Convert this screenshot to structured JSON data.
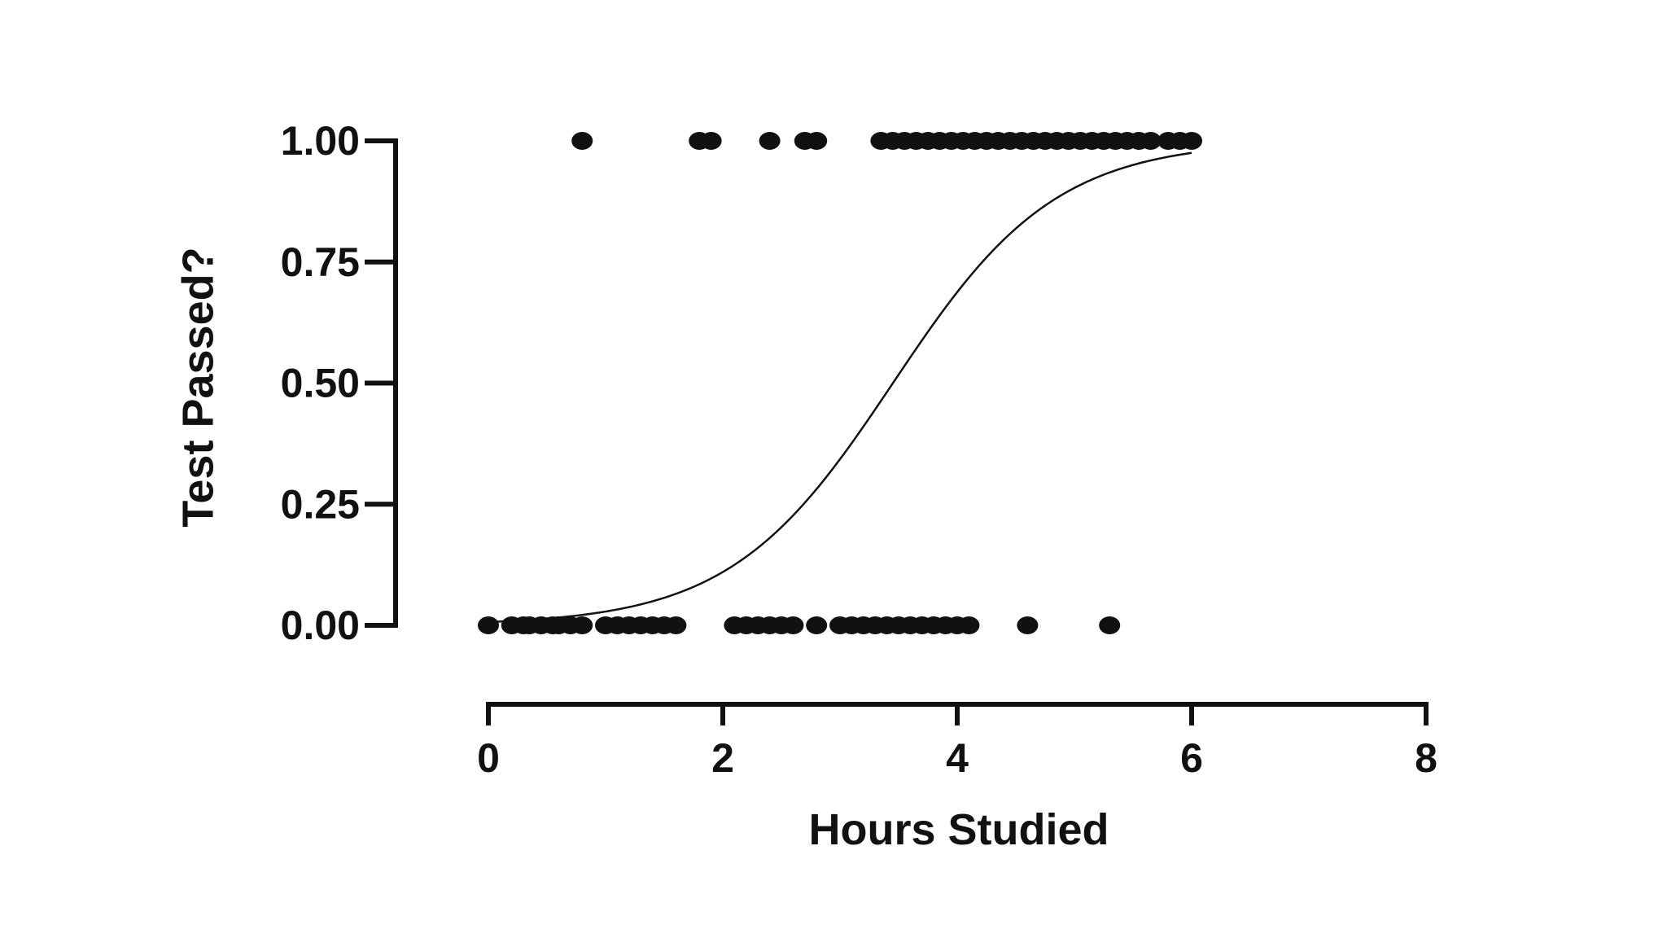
{
  "chart_data": {
    "type": "scatter",
    "xlabel": "Hours Studied",
    "ylabel": "Test Passed?",
    "xlim": [
      0,
      8
    ],
    "ylim": [
      0,
      1
    ],
    "x_ticks": [
      0,
      2,
      4,
      6,
      8
    ],
    "x_tick_labels": [
      "0",
      "2",
      "4",
      "6",
      "8"
    ],
    "y_ticks": [
      0,
      0.25,
      0.5,
      0.75,
      1
    ],
    "y_tick_labels": [
      "0.00",
      "0.25",
      "0.50",
      "0.75",
      "1.00"
    ],
    "grid": false,
    "colors": {
      "ink": "#111111",
      "background": "#ffffff"
    },
    "series": [
      {
        "kind": "points",
        "x": [
          0.0,
          0.2,
          0.3,
          0.35,
          0.45,
          0.55,
          0.6,
          0.7,
          0.8,
          1.0,
          1.1,
          1.2,
          1.3,
          1.4,
          1.5,
          1.6,
          2.1,
          2.2,
          2.3,
          2.4,
          2.5,
          2.6,
          2.8,
          3.0,
          3.1,
          3.2,
          3.3,
          3.4,
          3.5,
          3.6,
          3.7,
          3.8,
          3.9,
          4.0,
          4.1,
          4.6,
          5.3
        ],
        "y": [
          0,
          0,
          0,
          0,
          0,
          0,
          0,
          0,
          0,
          0,
          0,
          0,
          0,
          0,
          0,
          0,
          0,
          0,
          0,
          0,
          0,
          0,
          0,
          0,
          0,
          0,
          0,
          0,
          0,
          0,
          0,
          0,
          0,
          0,
          0,
          0,
          0
        ]
      },
      {
        "kind": "points",
        "x": [
          0.8,
          1.8,
          1.9,
          2.4,
          2.7,
          2.8,
          3.35,
          3.45,
          3.55,
          3.65,
          3.75,
          3.85,
          3.95,
          4.05,
          4.15,
          4.25,
          4.35,
          4.45,
          4.55,
          4.65,
          4.75,
          4.85,
          4.95,
          5.05,
          5.15,
          5.25,
          5.35,
          5.45,
          5.55,
          5.65,
          5.8,
          5.9,
          6.0
        ],
        "y": [
          1,
          1,
          1,
          1,
          1,
          1,
          1,
          1,
          1,
          1,
          1,
          1,
          1,
          1,
          1,
          1,
          1,
          1,
          1,
          1,
          1,
          1,
          1,
          1,
          1,
          1,
          1,
          1,
          1,
          1,
          1,
          1,
          1
        ]
      },
      {
        "kind": "fit-curve",
        "model": "logistic",
        "intercept": -4.97,
        "slope": 1.44,
        "x_range": [
          0,
          6
        ]
      }
    ]
  }
}
